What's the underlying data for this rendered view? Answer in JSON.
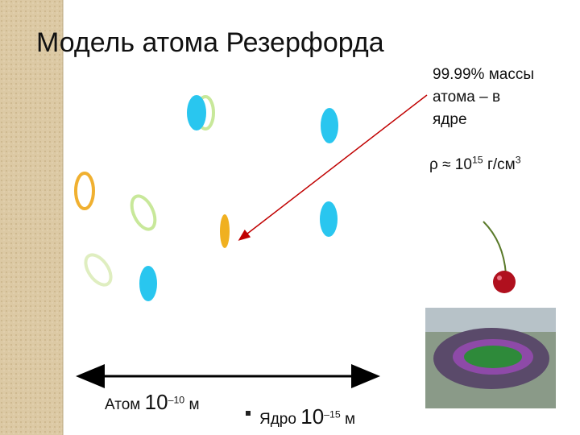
{
  "slide": {
    "title": "Модель атома Резерфорда",
    "note": [
      "99.99% массы",
      "атома – в",
      "ядре"
    ],
    "density": {
      "text": "ρ ≈ 10",
      "exponent": "15",
      "unit": "г/см",
      "unit_exponent": "3"
    },
    "atom": {
      "label": "Атом",
      "base": "10",
      "exponent": "–10",
      "unit": "м"
    },
    "nucleus": {
      "label": "Ядро",
      "base": "10",
      "exponent": "–15",
      "unit": "м"
    }
  }
}
